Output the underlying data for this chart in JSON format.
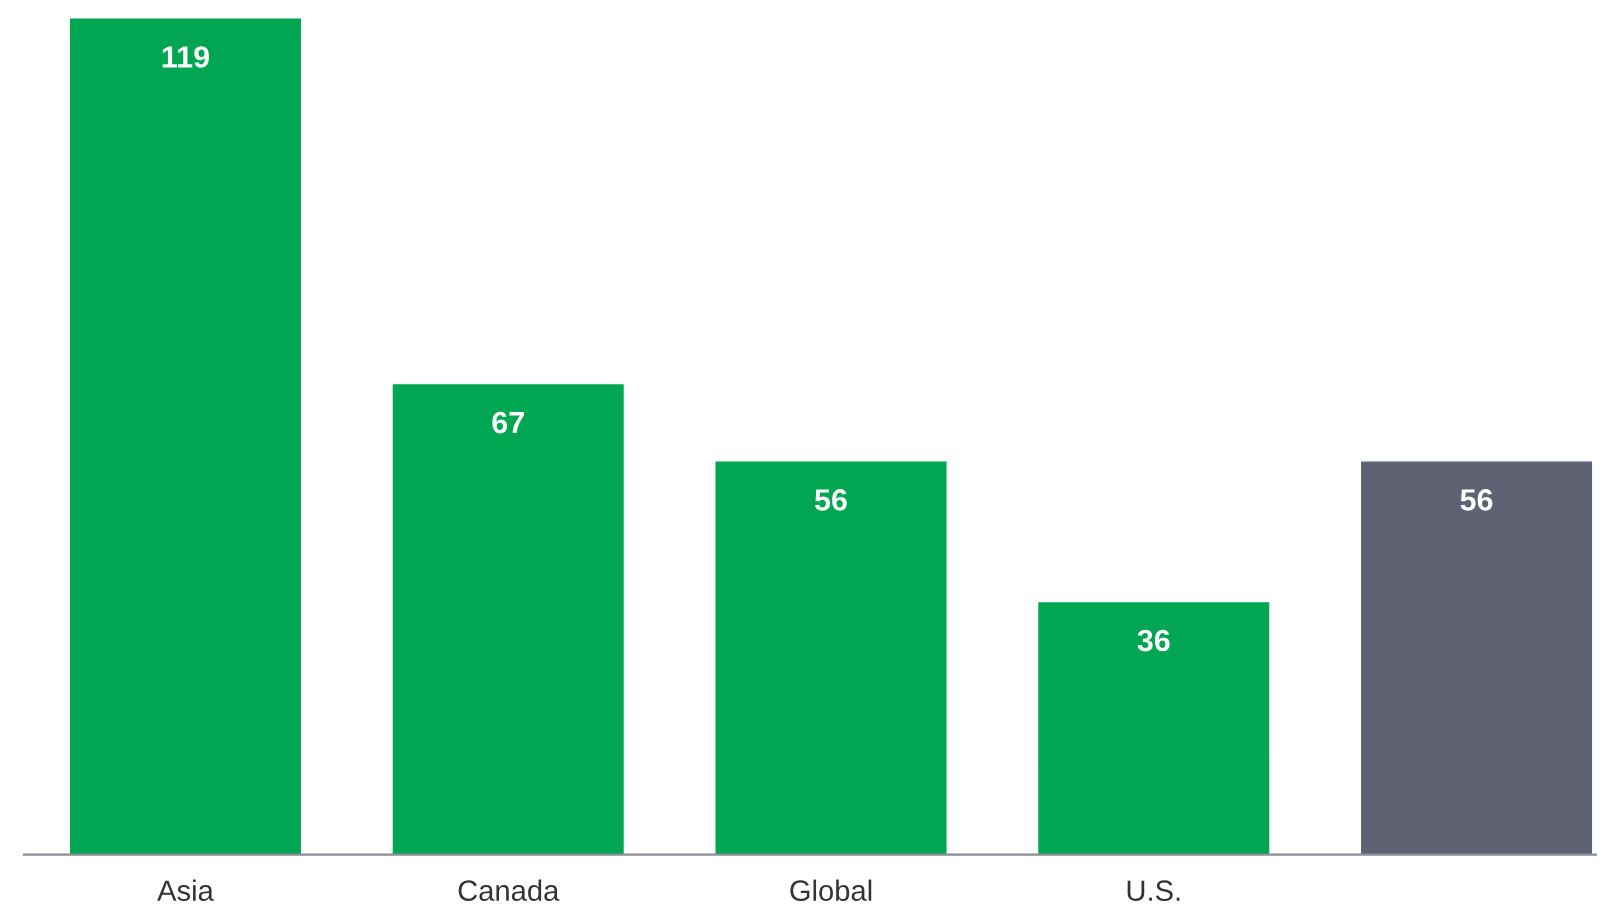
{
  "chart_data": {
    "type": "bar",
    "categories": [
      "Asia",
      "Canada",
      "Global",
      "U.S.",
      null
    ],
    "values": [
      119,
      67,
      56,
      36,
      56
    ],
    "colors": [
      "#00a651",
      "#00a651",
      "#00a651",
      "#00a651",
      "#5f6273"
    ],
    "data_labels": true
  }
}
